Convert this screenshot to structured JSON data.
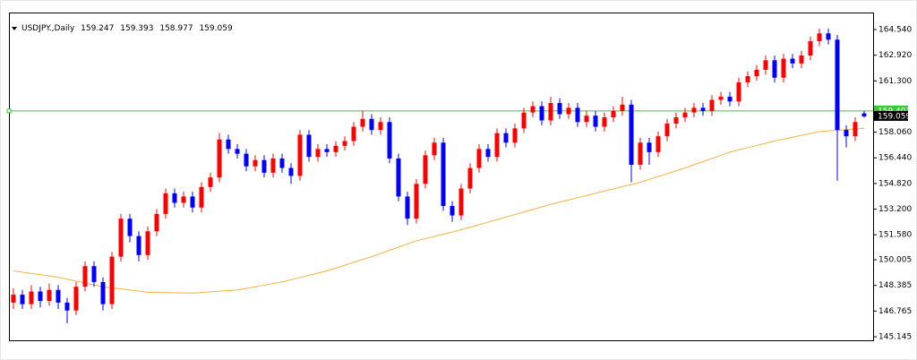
{
  "chart_data": {
    "type": "candlestick",
    "symbol": "USDJPY.,Daily",
    "open": [
      147.3,
      147.8,
      147.2,
      148.0,
      147.4,
      148.1,
      147.3,
      146.8,
      148.3,
      149.6,
      148.6,
      147.2,
      150.2,
      152.6,
      151.5,
      150.3,
      151.8,
      152.9,
      154.2,
      153.6,
      154.0,
      153.3,
      154.6,
      155.2,
      157.6,
      157.0,
      156.7,
      155.9,
      156.3,
      155.5,
      156.4,
      155.8,
      155.3,
      157.9,
      156.5,
      157.0,
      156.8,
      157.2,
      157.5,
      158.4,
      158.9,
      158.2,
      158.7,
      156.4,
      154.0,
      152.6,
      154.8,
      156.6,
      157.4,
      153.4,
      152.8,
      154.5,
      155.8,
      157.0,
      156.5,
      158.0,
      157.4,
      158.3,
      159.3,
      159.7,
      158.8,
      159.9,
      159.2,
      159.6,
      158.7,
      159.1,
      158.4,
      159.0,
      159.4,
      159.8,
      156.0,
      157.4,
      156.8,
      157.8,
      158.6,
      159.0,
      159.3,
      159.6,
      159.4,
      160.1,
      160.3,
      160.0,
      161.2,
      161.6,
      162.0,
      162.6,
      161.5,
      162.7,
      162.4,
      162.9,
      163.8,
      164.3,
      163.9,
      158.2,
      157.8,
      159.247
    ],
    "high": [
      148.2,
      148.1,
      148.4,
      148.3,
      148.5,
      148.4,
      147.6,
      148.6,
      149.9,
      149.9,
      148.9,
      150.5,
      152.9,
      152.9,
      151.8,
      152.1,
      153.2,
      154.5,
      154.5,
      154.3,
      154.3,
      154.9,
      155.5,
      158.0,
      157.9,
      157.3,
      157.0,
      156.6,
      156.6,
      156.7,
      156.7,
      156.1,
      158.2,
      158.2,
      157.3,
      157.3,
      157.5,
      157.8,
      158.7,
      159.4,
      159.2,
      159.0,
      159.0,
      156.7,
      154.3,
      155.1,
      156.9,
      157.7,
      157.7,
      153.7,
      154.8,
      156.1,
      157.3,
      157.3,
      158.3,
      158.3,
      158.6,
      159.6,
      160.0,
      160.0,
      160.3,
      160.2,
      159.9,
      159.9,
      159.4,
      159.4,
      159.3,
      159.7,
      160.3,
      160.1,
      157.7,
      157.7,
      158.1,
      158.9,
      159.3,
      159.6,
      159.9,
      159.9,
      160.4,
      160.6,
      160.6,
      161.5,
      161.9,
      162.3,
      162.9,
      162.9,
      163.0,
      163.0,
      163.2,
      164.1,
      164.6,
      164.6,
      164.2,
      158.5,
      159.0,
      159.393
    ],
    "low": [
      146.9,
      146.9,
      146.9,
      147.0,
      147.1,
      146.9,
      146.0,
      146.5,
      148.0,
      148.3,
      146.8,
      146.9,
      149.9,
      151.1,
      149.9,
      150.0,
      151.5,
      152.6,
      153.3,
      153.3,
      153.0,
      153.0,
      154.3,
      154.9,
      156.7,
      156.4,
      155.6,
      155.6,
      155.2,
      155.2,
      155.5,
      154.8,
      155.0,
      156.2,
      156.2,
      156.5,
      156.5,
      156.9,
      157.2,
      158.1,
      157.9,
      157.9,
      156.1,
      153.7,
      152.2,
      152.3,
      154.5,
      156.3,
      153.1,
      152.4,
      152.5,
      154.2,
      155.5,
      156.2,
      156.2,
      157.1,
      157.1,
      158.0,
      159.0,
      158.5,
      158.5,
      158.9,
      158.9,
      158.4,
      158.4,
      158.1,
      158.1,
      158.7,
      159.1,
      154.9,
      155.7,
      156.0,
      156.5,
      157.5,
      158.3,
      158.7,
      159.0,
      159.1,
      159.1,
      159.8,
      159.7,
      159.7,
      160.9,
      161.3,
      161.7,
      161.2,
      161.2,
      162.1,
      162.1,
      162.6,
      163.5,
      163.6,
      155.0,
      157.1,
      157.5,
      158.977
    ],
    "close": [
      147.8,
      147.2,
      148.0,
      147.4,
      148.1,
      147.3,
      146.8,
      148.3,
      149.6,
      148.6,
      147.2,
      150.2,
      152.6,
      151.5,
      150.3,
      151.8,
      152.9,
      154.2,
      153.6,
      154.0,
      153.3,
      154.6,
      155.2,
      157.6,
      157.0,
      156.7,
      155.9,
      156.3,
      155.5,
      156.4,
      155.8,
      155.3,
      157.9,
      156.5,
      157.0,
      156.8,
      157.2,
      157.5,
      158.4,
      158.9,
      158.2,
      158.7,
      156.4,
      154.0,
      152.6,
      154.8,
      156.6,
      157.4,
      153.4,
      152.8,
      154.5,
      155.8,
      157.0,
      156.5,
      158.0,
      157.4,
      158.3,
      159.3,
      159.7,
      158.8,
      159.9,
      159.2,
      159.6,
      158.7,
      159.1,
      158.4,
      159.0,
      159.4,
      159.8,
      156.0,
      157.4,
      156.8,
      157.8,
      158.6,
      159.0,
      159.3,
      159.6,
      159.4,
      160.1,
      160.3,
      160.0,
      161.2,
      161.6,
      162.0,
      162.6,
      161.5,
      162.7,
      162.4,
      162.9,
      163.8,
      164.3,
      163.9,
      158.2,
      157.8,
      158.7,
      159.059
    ],
    "up_color": "#ff0000",
    "down_color": "#0000ff",
    "moving_average": {
      "color": "#f5b041",
      "values": [
        149.3,
        149.22,
        149.14,
        149.06,
        148.98,
        148.9,
        148.78,
        148.66,
        148.54,
        148.42,
        148.3,
        148.23,
        148.16,
        148.09,
        148.02,
        147.95,
        147.94,
        147.93,
        147.92,
        147.91,
        147.9,
        147.94,
        147.98,
        148.02,
        148.06,
        148.1,
        148.2,
        148.3,
        148.4,
        148.5,
        148.6,
        148.74,
        148.88,
        149.02,
        149.16,
        149.3,
        149.48,
        149.66,
        149.84,
        150.02,
        150.2,
        150.4,
        150.6,
        150.8,
        151.0,
        151.2,
        151.34,
        151.48,
        151.62,
        151.76,
        151.9,
        152.06,
        152.22,
        152.38,
        152.54,
        152.7,
        152.86,
        153.02,
        153.18,
        153.34,
        153.5,
        153.64,
        153.78,
        153.92,
        154.06,
        154.2,
        154.34,
        154.48,
        154.62,
        154.76,
        154.9,
        155.08,
        155.26,
        155.44,
        155.62,
        155.8,
        156.0,
        156.2,
        156.4,
        156.6,
        156.8,
        156.94,
        157.08,
        157.22,
        157.36,
        157.5,
        157.62,
        157.74,
        157.86,
        157.98,
        158.1,
        158.14,
        158.18,
        158.22,
        158.26,
        158.3
      ]
    },
    "level": {
      "value": 159.403,
      "color": "#33cc33"
    },
    "ylim": [
      144.919,
      165.614
    ],
    "yticks": [
      {
        "value": 164.54,
        "label": "164.540"
      },
      {
        "value": 162.92,
        "label": "162.920"
      },
      {
        "value": 161.3,
        "label": "161.300"
      },
      {
        "value": 158.06,
        "label": "158.060"
      },
      {
        "value": 156.44,
        "label": "156.440"
      },
      {
        "value": 154.82,
        "label": "154.820"
      },
      {
        "value": 153.2,
        "label": "153.200"
      },
      {
        "value": 151.58,
        "label": "151.580"
      },
      {
        "value": 150.005,
        "label": "150.005"
      },
      {
        "value": 148.385,
        "label": "148.385"
      },
      {
        "value": 146.765,
        "label": "146.765"
      },
      {
        "value": 145.145,
        "label": "145.145"
      }
    ]
  }
}
